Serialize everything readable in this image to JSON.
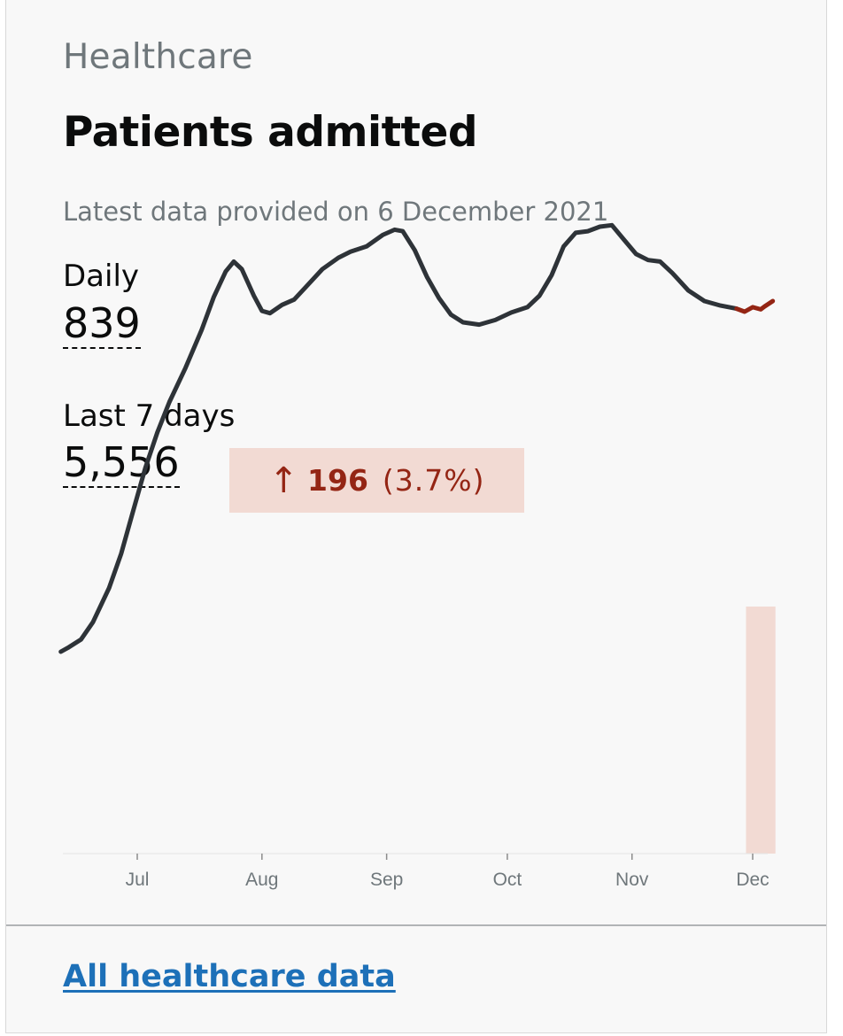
{
  "card": {
    "category": "Healthcare",
    "title": "Patients admitted",
    "updated": "Latest data provided on 6 December 2021",
    "daily_label": "Daily",
    "daily_value": "839",
    "week_label": "Last 7 days",
    "week_value": "5,556",
    "change_arrow": "↑",
    "change_value": "196",
    "change_percent": "(3.7%)",
    "link_text": "All healthcare data"
  },
  "colors": {
    "line": "#2e3338",
    "highlight_line": "#942514",
    "highlight_fill": "#f2dad3",
    "link": "#1d70b8"
  },
  "chart_data": {
    "type": "line",
    "title": "",
    "xlabel": "",
    "ylabel": "",
    "y_axis_labels": false,
    "x_ticks": [
      "Jul",
      "Aug",
      "Sep",
      "Oct",
      "Nov",
      "Dec"
    ],
    "x_tick_dates": [
      "2021-07-01",
      "2021-08-01",
      "2021-09-01",
      "2021-10-01",
      "2021-11-01",
      "2021-12-01"
    ],
    "highlight_range": [
      "2021-11-30",
      "2021-12-06"
    ],
    "ylim": [
      0,
      1050
    ],
    "series": [
      {
        "points": [
          [
            "2021-06-12",
            266
          ],
          [
            "2021-06-14",
            272
          ],
          [
            "2021-06-17",
            282
          ],
          [
            "2021-06-20",
            305
          ],
          [
            "2021-06-24",
            350
          ],
          [
            "2021-06-27",
            395
          ],
          [
            "2021-06-30",
            452
          ],
          [
            "2021-07-03",
            508
          ],
          [
            "2021-07-06",
            555
          ],
          [
            "2021-07-09",
            595
          ],
          [
            "2021-07-13",
            640
          ],
          [
            "2021-07-17",
            690
          ],
          [
            "2021-07-20",
            733
          ],
          [
            "2021-07-23",
            767
          ],
          [
            "2021-07-25",
            780
          ],
          [
            "2021-07-27",
            770
          ],
          [
            "2021-07-30",
            735
          ],
          [
            "2021-08-01",
            715
          ],
          [
            "2021-08-03",
            712
          ],
          [
            "2021-08-06",
            723
          ],
          [
            "2021-08-09",
            730
          ],
          [
            "2021-08-12",
            747
          ],
          [
            "2021-08-16",
            770
          ],
          [
            "2021-08-20",
            785
          ],
          [
            "2021-08-23",
            793
          ],
          [
            "2021-08-27",
            800
          ],
          [
            "2021-08-31",
            815
          ],
          [
            "2021-09-03",
            822
          ],
          [
            "2021-09-05",
            820
          ],
          [
            "2021-09-08",
            795
          ],
          [
            "2021-09-11",
            760
          ],
          [
            "2021-09-14",
            732
          ],
          [
            "2021-09-17",
            710
          ],
          [
            "2021-09-20",
            700
          ],
          [
            "2021-09-24",
            697
          ],
          [
            "2021-09-28",
            703
          ],
          [
            "2021-10-02",
            713
          ],
          [
            "2021-10-06",
            720
          ],
          [
            "2021-10-09",
            735
          ],
          [
            "2021-10-12",
            762
          ],
          [
            "2021-10-15",
            800
          ],
          [
            "2021-10-18",
            818
          ],
          [
            "2021-10-21",
            820
          ],
          [
            "2021-10-24",
            826
          ],
          [
            "2021-10-27",
            828
          ],
          [
            "2021-10-30",
            809
          ],
          [
            "2021-11-02",
            790
          ],
          [
            "2021-11-05",
            782
          ],
          [
            "2021-11-08",
            780
          ],
          [
            "2021-11-11",
            765
          ],
          [
            "2021-11-15",
            742
          ],
          [
            "2021-11-19",
            728
          ],
          [
            "2021-11-23",
            722
          ],
          [
            "2021-11-27",
            718
          ]
        ]
      },
      {
        "points": [
          [
            "2021-11-27",
            718
          ],
          [
            "2021-11-29",
            714
          ],
          [
            "2021-12-01",
            720
          ],
          [
            "2021-12-03",
            717
          ],
          [
            "2021-12-04",
            721
          ],
          [
            "2021-12-06",
            728
          ]
        ]
      }
    ]
  }
}
